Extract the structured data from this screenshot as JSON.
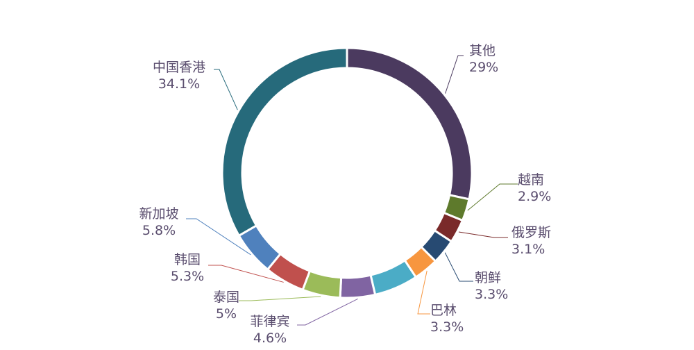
{
  "chart_data": {
    "type": "pie",
    "variant": "donut",
    "legend": "none",
    "slices": [
      {
        "label": "其他",
        "value": 29,
        "value_label": "29%",
        "color": "#4b3a5f"
      },
      {
        "label": "越南",
        "value": 2.9,
        "value_label": "2.9%",
        "color": "#5e7a2c"
      },
      {
        "label": "俄罗斯",
        "value": 3.1,
        "value_label": "3.1%",
        "color": "#7a2a2a"
      },
      {
        "label": "朝鲜",
        "value": 3.3,
        "value_label": "3.3%",
        "color": "#274a72"
      },
      {
        "label": "巴林",
        "value": 3.3,
        "value_label": "3.3%",
        "color": "#f7963f"
      },
      {
        "label": "",
        "value": 5.8,
        "value_label": "",
        "color": "#4bacc6"
      },
      {
        "label": "菲律宾",
        "value": 4.6,
        "value_label": "4.6%",
        "color": "#8064a2"
      },
      {
        "label": "泰国",
        "value": 5,
        "value_label": "5%",
        "color": "#9bbb59"
      },
      {
        "label": "韩国",
        "value": 5.3,
        "value_label": "5.3%",
        "color": "#c0504d"
      },
      {
        "label": "新加坡",
        "value": 5.8,
        "value_label": "5.8%",
        "color": "#4f81bd"
      },
      {
        "label": "中国香港",
        "value": 34.1,
        "value_label": "34.1%",
        "color": "#266a7b"
      }
    ]
  }
}
